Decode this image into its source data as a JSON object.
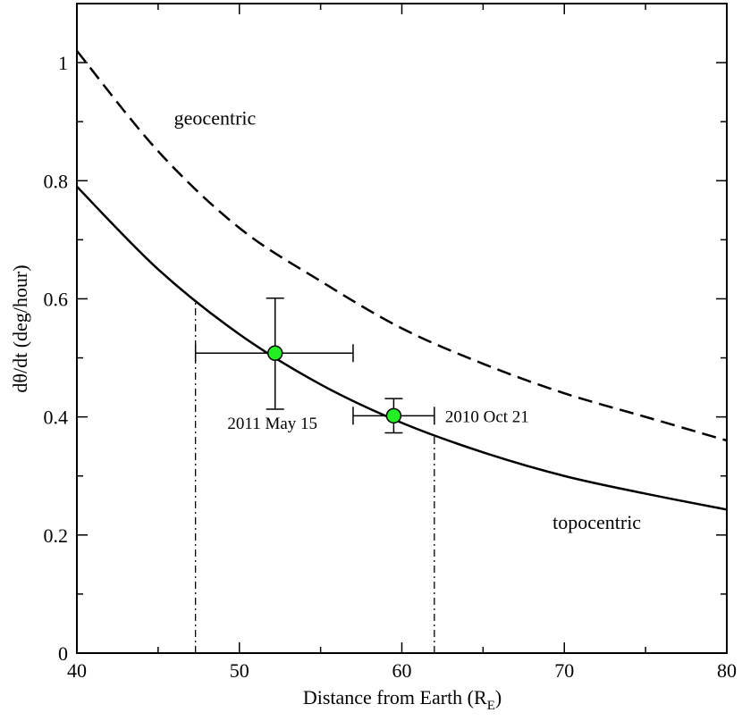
{
  "chart_data": {
    "type": "line",
    "xlabel": "Distance from Earth (R",
    "xlabel_sub": "E",
    "xlabel_close": ")",
    "ylabel": "dθ/dt (deg/hour)",
    "xlim": [
      40,
      80
    ],
    "ylim": [
      0,
      1.1
    ],
    "xticks": [
      40,
      50,
      60,
      70,
      80
    ],
    "xtick_labels": [
      "40",
      "50",
      "60",
      "70",
      "80"
    ],
    "yticks": [
      0,
      0.2,
      0.4,
      0.6,
      0.8,
      1
    ],
    "ytick_labels": [
      "0",
      "0.2",
      "0.4",
      "0.6",
      "0.8",
      "1"
    ],
    "grid": false,
    "series": [
      {
        "name": "geocentric",
        "style": "dashed",
        "color": "#000000",
        "x": [
          40,
          45,
          50,
          55,
          60,
          65,
          70,
          75,
          80
        ],
        "y": [
          1.02,
          0.85,
          0.72,
          0.63,
          0.55,
          0.49,
          0.44,
          0.4,
          0.36
        ]
      },
      {
        "name": "topocentric",
        "style": "solid",
        "color": "#000000",
        "x": [
          40,
          45,
          50,
          55,
          60,
          65,
          70,
          75,
          80
        ],
        "y": [
          0.79,
          0.65,
          0.54,
          0.455,
          0.39,
          0.34,
          0.3,
          0.27,
          0.243
        ]
      }
    ],
    "points": [
      {
        "label": "2011 May 15",
        "x": 52.2,
        "y": 0.508,
        "xerr": [
          47.3,
          57.0
        ],
        "yerr": [
          0.413,
          0.601
        ],
        "color": "#22ee22"
      },
      {
        "label": "2010 Oct 21",
        "x": 59.5,
        "y": 0.402,
        "xerr": [
          57.0,
          62.0
        ],
        "yerr": [
          0.373,
          0.431
        ],
        "color": "#22ee22"
      }
    ],
    "vlines": [
      {
        "x": 47.3,
        "style": "dashdot"
      },
      {
        "x": 62.0,
        "style": "dashdot"
      }
    ],
    "annotations": [
      {
        "text": "geocentric",
        "x": 48.5,
        "y": 0.895
      },
      {
        "text": "topocentric",
        "x": 72,
        "y": 0.21
      }
    ]
  }
}
